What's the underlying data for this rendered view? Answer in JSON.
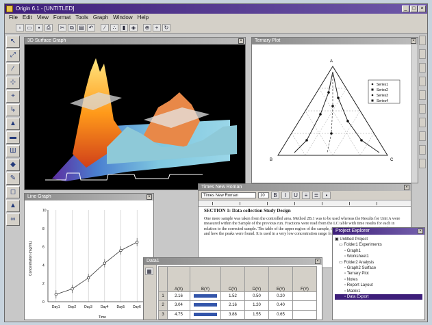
{
  "app": {
    "title": "Origin 6.1 - [UNTITLED]",
    "menu": [
      "File",
      "Edit",
      "View",
      "Format",
      "Tools",
      "Graph",
      "Window",
      "Help"
    ],
    "toolbar_icons": [
      "new-icon",
      "open-icon",
      "save-icon",
      "print-icon",
      "cut-icon",
      "copy-icon",
      "paste-icon",
      "undo-icon",
      "plot-line-icon",
      "plot-scatter-icon",
      "plot-column-icon",
      "plot-3d-icon",
      "zoom-icon",
      "data-reader-icon",
      "refresh-icon"
    ],
    "left_tools": [
      "↖",
      "⤢",
      "∕",
      "⊹",
      "+",
      "↳",
      "▲",
      "▬",
      "Ш",
      "◆",
      "✎",
      "◻",
      "▲",
      "∞"
    ]
  },
  "surface_window": {
    "title": "3D Surface Graph"
  },
  "ternary_window": {
    "title": "Ternary Plot",
    "axis_top": "A",
    "axis_left": "B",
    "axis_right": "C",
    "legend": [
      "Series1",
      "Series2",
      "Series3",
      "Series4"
    ]
  },
  "line_window": {
    "title": "Line Graph",
    "ylabel": "Concentration (mg/mL)",
    "xlabel": "Time",
    "xticks": [
      "Day1",
      "Day2",
      "Day3",
      "Day4",
      "Day5",
      "Day6"
    ],
    "yticks": [
      "0",
      "2",
      "4",
      "6",
      "8",
      "10"
    ]
  },
  "chart_data": {
    "type": "line",
    "x": [
      1,
      2,
      3,
      4,
      5,
      6
    ],
    "y": [
      0.8,
      1.4,
      2.6,
      4.2,
      5.6,
      6.5
    ],
    "ylim": [
      0,
      10
    ],
    "xlim": [
      0.5,
      6.5
    ],
    "grid": true
  },
  "doc_window": {
    "title": "Times New Roman",
    "font_value": "Times New Roman",
    "size_value": "10",
    "heading": "SECTION 1: Data collection Study Design",
    "body": "One more sample was taken from the controlled area. Method 2B.1 was to be used whereas the Results for Unit A were measured within the Sample of the previous run. Fractions were read from the LC table with time results for each in relation to the corrected sample. The table of the upper region of the sample, it remains best in the range of applications and how the peaks were found. It is used in a very low concentration range from the surface."
  },
  "tree_window": {
    "title": "Project Explorer",
    "nodes": [
      "Untitled Project",
      "Folder1 Experiments",
      "Graph1",
      "Worksheet1",
      "Folder2 Analysis",
      "Graph2 Surface",
      "Ternary Plot",
      "Notes",
      "Report Layout",
      "Matrix1",
      "Data Export"
    ]
  },
  "table_window": {
    "title": "Data1",
    "headers": [
      "A(X)",
      "B(Y)",
      "C(Y)",
      "D(Y)",
      "E(Y)",
      "F(Y)"
    ],
    "rows": [
      [
        "1",
        "2.16",
        "",
        "1.52",
        "0.50",
        "0.20"
      ],
      [
        "2",
        "3.04",
        "",
        "2.16",
        "1.20",
        "0.40"
      ],
      [
        "3",
        "4.75",
        "",
        "3.88",
        "1.55",
        "0.65"
      ]
    ]
  }
}
